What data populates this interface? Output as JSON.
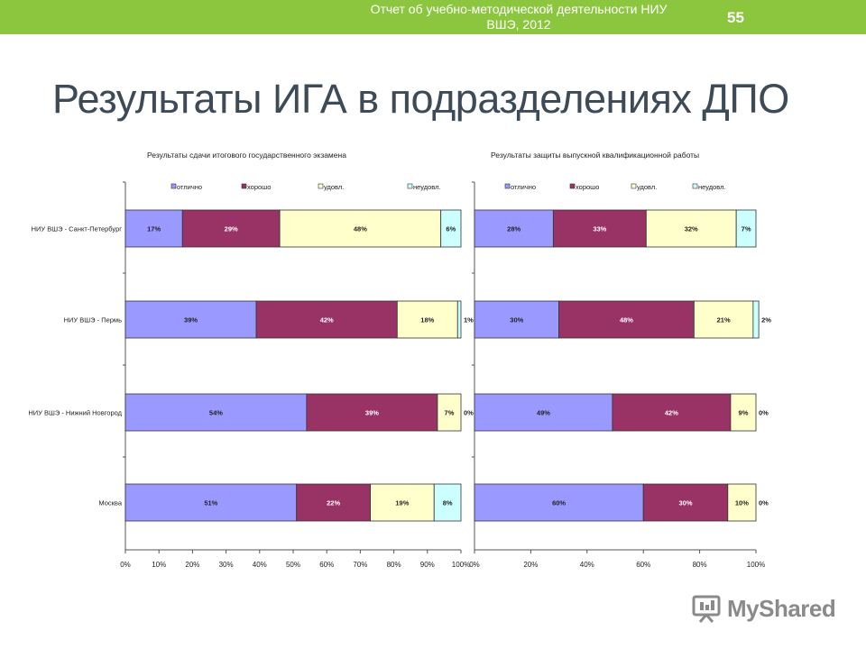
{
  "header": {
    "title_line1": "Отчет об учебно-методической деятельности НИУ",
    "title_line2": "ВШЭ, 2012",
    "page_number": "55"
  },
  "slide": {
    "title": "Результаты ИГА в подразделениях ДПО"
  },
  "logo": {
    "text": "MyShared",
    "icon": "presentation-board-icon"
  },
  "colors": {
    "header_bg": "#8cc63f",
    "otlichno": "#9999ff",
    "horosho": "#993366",
    "udovl": "#ffffcc",
    "neudovl": "#ccffff"
  },
  "chart_data": [
    {
      "type": "bar",
      "orientation": "horizontal",
      "stacked": "percent",
      "title": "Результаты сдачи итогового государственного экзамена",
      "categories": [
        "НИУ ВШЭ - Санкт-Петербург",
        "НИУ ВШЭ - Пермь",
        "НИУ ВШЭ - Нижний Новгород",
        "Москва"
      ],
      "series": [
        {
          "name": "отлично",
          "values": [
            17,
            39,
            54,
            51
          ],
          "labels": [
            "17%",
            "39%",
            "54%",
            "51%"
          ]
        },
        {
          "name": "хорошо",
          "values": [
            29,
            42,
            39,
            22
          ],
          "labels": [
            "29%",
            "42%",
            "39%",
            "22%"
          ]
        },
        {
          "name": "удовл.",
          "values": [
            48,
            18,
            7,
            19
          ],
          "labels": [
            "48%",
            "18%",
            "7%",
            "19%"
          ]
        },
        {
          "name": "неудовл.",
          "values": [
            6,
            1,
            0,
            8
          ],
          "labels": [
            "6%",
            "1%",
            "0%",
            "8%"
          ]
        }
      ],
      "xlim": [
        0,
        100
      ],
      "xticks": [
        "0%",
        "10%",
        "20%",
        "30%",
        "40%",
        "50%",
        "60%",
        "70%",
        "80%",
        "90%",
        "100%"
      ],
      "legend": "top",
      "grid": false
    },
    {
      "type": "bar",
      "orientation": "horizontal",
      "stacked": "percent",
      "title": "Результаты защиты выпускной квалификационной работы",
      "categories": [
        "НИУ ВШЭ - Санкт-Петербург",
        "НИУ ВШЭ - Пермь",
        "НИУ ВШЭ - Нижний Новгород",
        "Москва"
      ],
      "series": [
        {
          "name": "отлично",
          "values": [
            28,
            30,
            49,
            60
          ],
          "labels": [
            "28%",
            "30%",
            "49%",
            "60%"
          ]
        },
        {
          "name": "хорошо",
          "values": [
            33,
            48,
            42,
            30
          ],
          "labels": [
            "33%",
            "48%",
            "42%",
            "30%"
          ]
        },
        {
          "name": "удовл.",
          "values": [
            32,
            21,
            9,
            10
          ],
          "labels": [
            "32%",
            "21%",
            "9%",
            "10%"
          ]
        },
        {
          "name": "неудовл.",
          "values": [
            7,
            2,
            0,
            0
          ],
          "labels": [
            "7%",
            "2%",
            "0%",
            "0%"
          ]
        }
      ],
      "xlim": [
        0,
        100
      ],
      "xticks": [
        "0%",
        "20%",
        "40%",
        "60%",
        "80%",
        "100%"
      ],
      "legend": "top",
      "grid": false
    }
  ]
}
